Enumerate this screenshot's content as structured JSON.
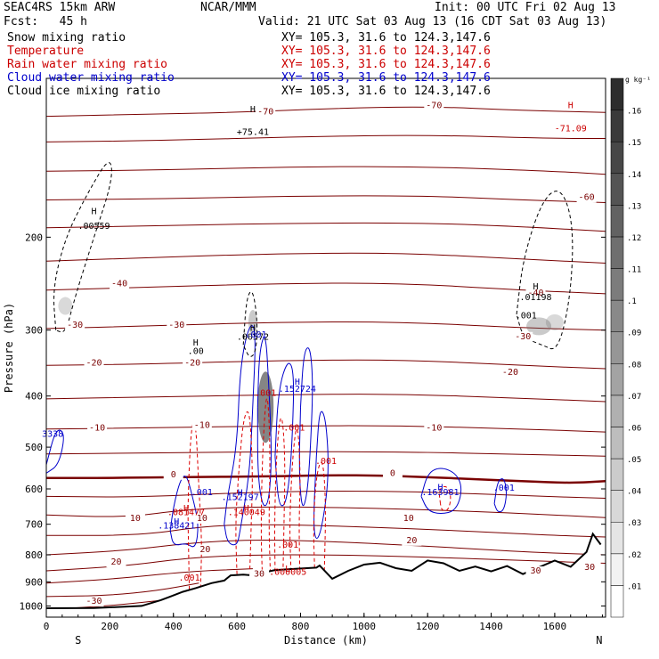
{
  "header": {
    "model": "SEAC4RS 15km ARW",
    "center": "NCAR/MMM",
    "init": "Init: 00 UTC Fri 02 Aug 13",
    "fcst": "Fcst:   45 h",
    "valid": "Valid: 21 UTC Sat 03 Aug 13 (16 CDT Sat 03 Aug 13)",
    "fields": [
      {
        "name": "Snow mixing ratio",
        "xy": "XY= 105.3, 31.6 to 124.3,147.6",
        "color": "#000000"
      },
      {
        "name": "Temperature",
        "xy": "XY= 105.3, 31.6 to 124.3,147.6",
        "color": "#cc0000"
      },
      {
        "name": "Rain water mixing ratio",
        "xy": "XY= 105.3, 31.6 to 124.3,147.6",
        "color": "#cc0000"
      },
      {
        "name": "Cloud water mixing ratio",
        "xy": "XY= 105.3, 31.6 to 124.3,147.6",
        "color": "#0000cc"
      },
      {
        "name": "Cloud ice mixing ratio",
        "xy": "XY= 105.3, 31.6 to 124.3,147.6",
        "color": "#000000"
      }
    ]
  },
  "colors": {
    "temperature": "#7a0000",
    "zero_isotherm": "#7a0000",
    "rain": "#dd0000",
    "cloud_water": "#0000cc",
    "terrain": "#000000"
  },
  "chart_data": {
    "type": "cross-section",
    "xlabel": "Distance (km)",
    "ylabel": "Pressure (hPa)",
    "xlim": [
      0,
      1760
    ],
    "ylim": [
      1050,
      100
    ],
    "y_log": true,
    "x_ticks": [
      0,
      200,
      400,
      600,
      800,
      1000,
      1200,
      1400,
      1600
    ],
    "y_ticks": [
      200,
      300,
      400,
      500,
      600,
      700,
      800,
      900,
      1000
    ],
    "x_end_labels": {
      "left": "S",
      "right": "N"
    },
    "terrain": {
      "x": [
        0,
        150,
        300,
        360,
        390,
        430,
        470,
        520,
        560,
        580,
        620,
        650,
        700,
        720,
        760,
        790,
        820,
        850,
        860,
        900,
        950,
        1000,
        1050,
        1100,
        1150,
        1200,
        1250,
        1300,
        1350,
        1400,
        1450,
        1500,
        1550,
        1600,
        1650,
        1700,
        1720,
        1745
      ],
      "p": [
        1010,
        1009,
        1000,
        975,
        960,
        940,
        925,
        905,
        895,
        875,
        872,
        875,
        860,
        855,
        852,
        850,
        848,
        846,
        838,
        888,
        858,
        835,
        828,
        848,
        858,
        820,
        830,
        858,
        842,
        860,
        840,
        870,
        845,
        820,
        843,
        790,
        730,
        765
      ]
    },
    "temperature": {
      "levels_c": [
        -70,
        -60,
        -40,
        -30,
        -20,
        -10,
        0,
        10,
        20,
        30
      ],
      "labels": [
        {
          "x": 690,
          "p": 117,
          "text": "-70"
        },
        {
          "x": 1220,
          "p": 114,
          "text": "-70"
        },
        {
          "x": 1700,
          "p": 170,
          "text": "-60"
        },
        {
          "x": 230,
          "p": 248,
          "text": "-40"
        },
        {
          "x": 1540,
          "p": 258,
          "text": "-40"
        },
        {
          "x": 90,
          "p": 297,
          "text": "-30"
        },
        {
          "x": 410,
          "p": 297,
          "text": "-30"
        },
        {
          "x": 1500,
          "p": 312,
          "text": "-30"
        },
        {
          "x": 150,
          "p": 350,
          "text": "-20"
        },
        {
          "x": 460,
          "p": 350,
          "text": "-20"
        },
        {
          "x": 1460,
          "p": 365,
          "text": "-20"
        },
        {
          "x": 160,
          "p": 465,
          "text": "-10"
        },
        {
          "x": 490,
          "p": 460,
          "text": "-10"
        },
        {
          "x": 1220,
          "p": 465,
          "text": "-10"
        },
        {
          "x": 400,
          "p": 570,
          "text": "0"
        },
        {
          "x": 1090,
          "p": 567,
          "text": "0"
        },
        {
          "x": 280,
          "p": 690,
          "text": "10"
        },
        {
          "x": 490,
          "p": 690,
          "text": "10"
        },
        {
          "x": 1140,
          "p": 690,
          "text": "10"
        },
        {
          "x": 500,
          "p": 790,
          "text": "20"
        },
        {
          "x": 1150,
          "p": 760,
          "text": "20"
        },
        {
          "x": 220,
          "p": 835,
          "text": "20"
        },
        {
          "x": 670,
          "p": 880,
          "text": "30"
        },
        {
          "x": 1540,
          "p": 868,
          "text": "30"
        },
        {
          "x": 1710,
          "p": 855,
          "text": "30"
        },
        {
          "x": 150,
          "p": 990,
          "text": "-30"
        }
      ]
    },
    "extrema": [
      {
        "x": 150,
        "p": 185,
        "mark": "H",
        "text": ".00559",
        "color": "#000000"
      },
      {
        "x": 470,
        "p": 325,
        "mark": "H",
        "text": ".00",
        "color": "#000000"
      },
      {
        "x": 650,
        "p": 305,
        "mark": "H",
        "text": ".00572",
        "color": "#000000"
      },
      {
        "x": 1540,
        "p": 255,
        "mark": "H",
        "text": ".01198",
        "color": "#000000"
      },
      {
        "x": 790,
        "p": 385,
        "mark": "H",
        "text": ".152724",
        "color": "#0000cc"
      },
      {
        "x": 610,
        "p": 622,
        "mark": "H",
        "text": ".152197",
        "color": "#0000cc"
      },
      {
        "x": 410,
        "p": 705,
        "mark": "H",
        "text": ".138421",
        "color": "#0000cc"
      },
      {
        "x": 1240,
        "p": 608,
        "mark": "H",
        "text": ".163981",
        "color": "#0000cc"
      },
      {
        "x": 440,
        "p": 665,
        "mark": "H",
        "text": ".081477",
        "color": "#cc0000"
      },
      {
        "x": 630,
        "p": 665,
        "mark": "H",
        "text": ".140049",
        "color": "#cc0000"
      },
      {
        "x": 1650,
        "p": 118,
        "mark": "H",
        "text": "-71.09",
        "color": "#cc0000"
      },
      {
        "x": 650,
        "p": 120,
        "mark": "H",
        "text": "+75.41",
        "color": "#000000"
      },
      {
        "x": 760,
        "p": 865,
        "mark": "L",
        "text": ".000005",
        "color": "#cc0000"
      }
    ],
    "small_labels": [
      {
        "x": 20,
        "p": 478,
        "text": "3338",
        "color": "#0000cc"
      },
      {
        "x": 660,
        "p": 310,
        "text": ".001",
        "color": "#0000cc"
      },
      {
        "x": 690,
        "p": 400,
        "text": ".001",
        "color": "#cc0000"
      },
      {
        "x": 780,
        "p": 465,
        "text": ".001",
        "color": "#cc0000"
      },
      {
        "x": 880,
        "p": 538,
        "text": ".001",
        "color": "#cc0000"
      },
      {
        "x": 490,
        "p": 617,
        "text": ".001",
        "color": "#0000cc"
      },
      {
        "x": 1440,
        "p": 605,
        "text": ".001",
        "color": "#0000cc"
      },
      {
        "x": 760,
        "p": 775,
        "text": ".001",
        "color": "#cc0000"
      },
      {
        "x": 450,
        "p": 895,
        "text": ".001",
        "color": "#cc0000"
      },
      {
        "x": 1510,
        "p": 285,
        "text": ".001",
        "color": "#000000"
      }
    ],
    "legend_scale": {
      "unit": "g kg⁻¹",
      "labels": [
        ".01",
        ".02",
        ".03",
        ".04",
        ".05",
        ".06",
        ".07",
        ".08",
        ".09",
        ".1",
        ".11",
        ".12",
        ".13",
        ".14",
        ".15",
        ".16"
      ]
    }
  }
}
